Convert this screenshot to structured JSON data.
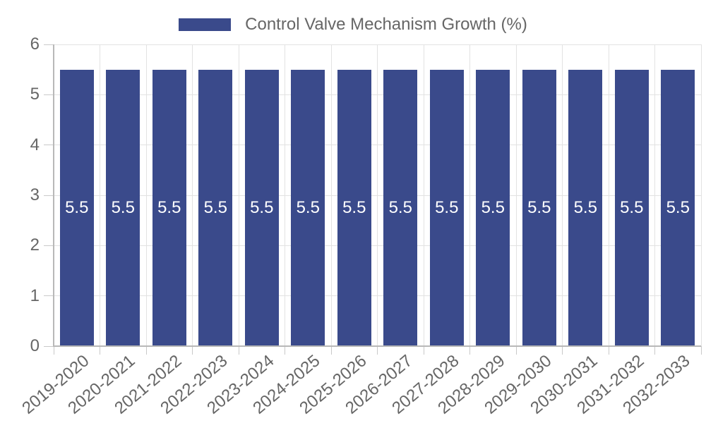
{
  "legend": {
    "label": "Control Valve Mechanism Growth (%)"
  },
  "chart_data": {
    "type": "bar",
    "title": "Control Valve Mechanism Growth (%)",
    "categories": [
      "2019-2020",
      "2020-2021",
      "2021-2022",
      "2022-2023",
      "2023-2024",
      "2024-2025",
      "2025-2026",
      "2026-2027",
      "2027-2028",
      "2028-2029",
      "2029-2030",
      "2030-2031",
      "2031-2032",
      "2032-2033"
    ],
    "series": [
      {
        "name": "Control Valve Mechanism Growth (%)",
        "values": [
          5.5,
          5.5,
          5.5,
          5.5,
          5.5,
          5.5,
          5.5,
          5.5,
          5.5,
          5.5,
          5.5,
          5.5,
          5.5,
          5.5
        ]
      }
    ],
    "value_label_format": "0.0",
    "xlabel": "",
    "ylabel": "",
    "ylim": [
      0,
      6
    ],
    "yticks": [
      0,
      1,
      2,
      3,
      4,
      5,
      6
    ],
    "grid": true,
    "x_tick_rotation_deg": -40,
    "legend_position": "top",
    "colors": {
      "bar": "#3A4A8B",
      "value_label": "#FFFFFF",
      "legend_text": "#666666",
      "axis_text": "#666666",
      "gridline": "#E2E2E2",
      "axis_line": "#B8B8B8",
      "tick_mark": "#C9C9C9",
      "background": "#FFFFFF"
    }
  }
}
